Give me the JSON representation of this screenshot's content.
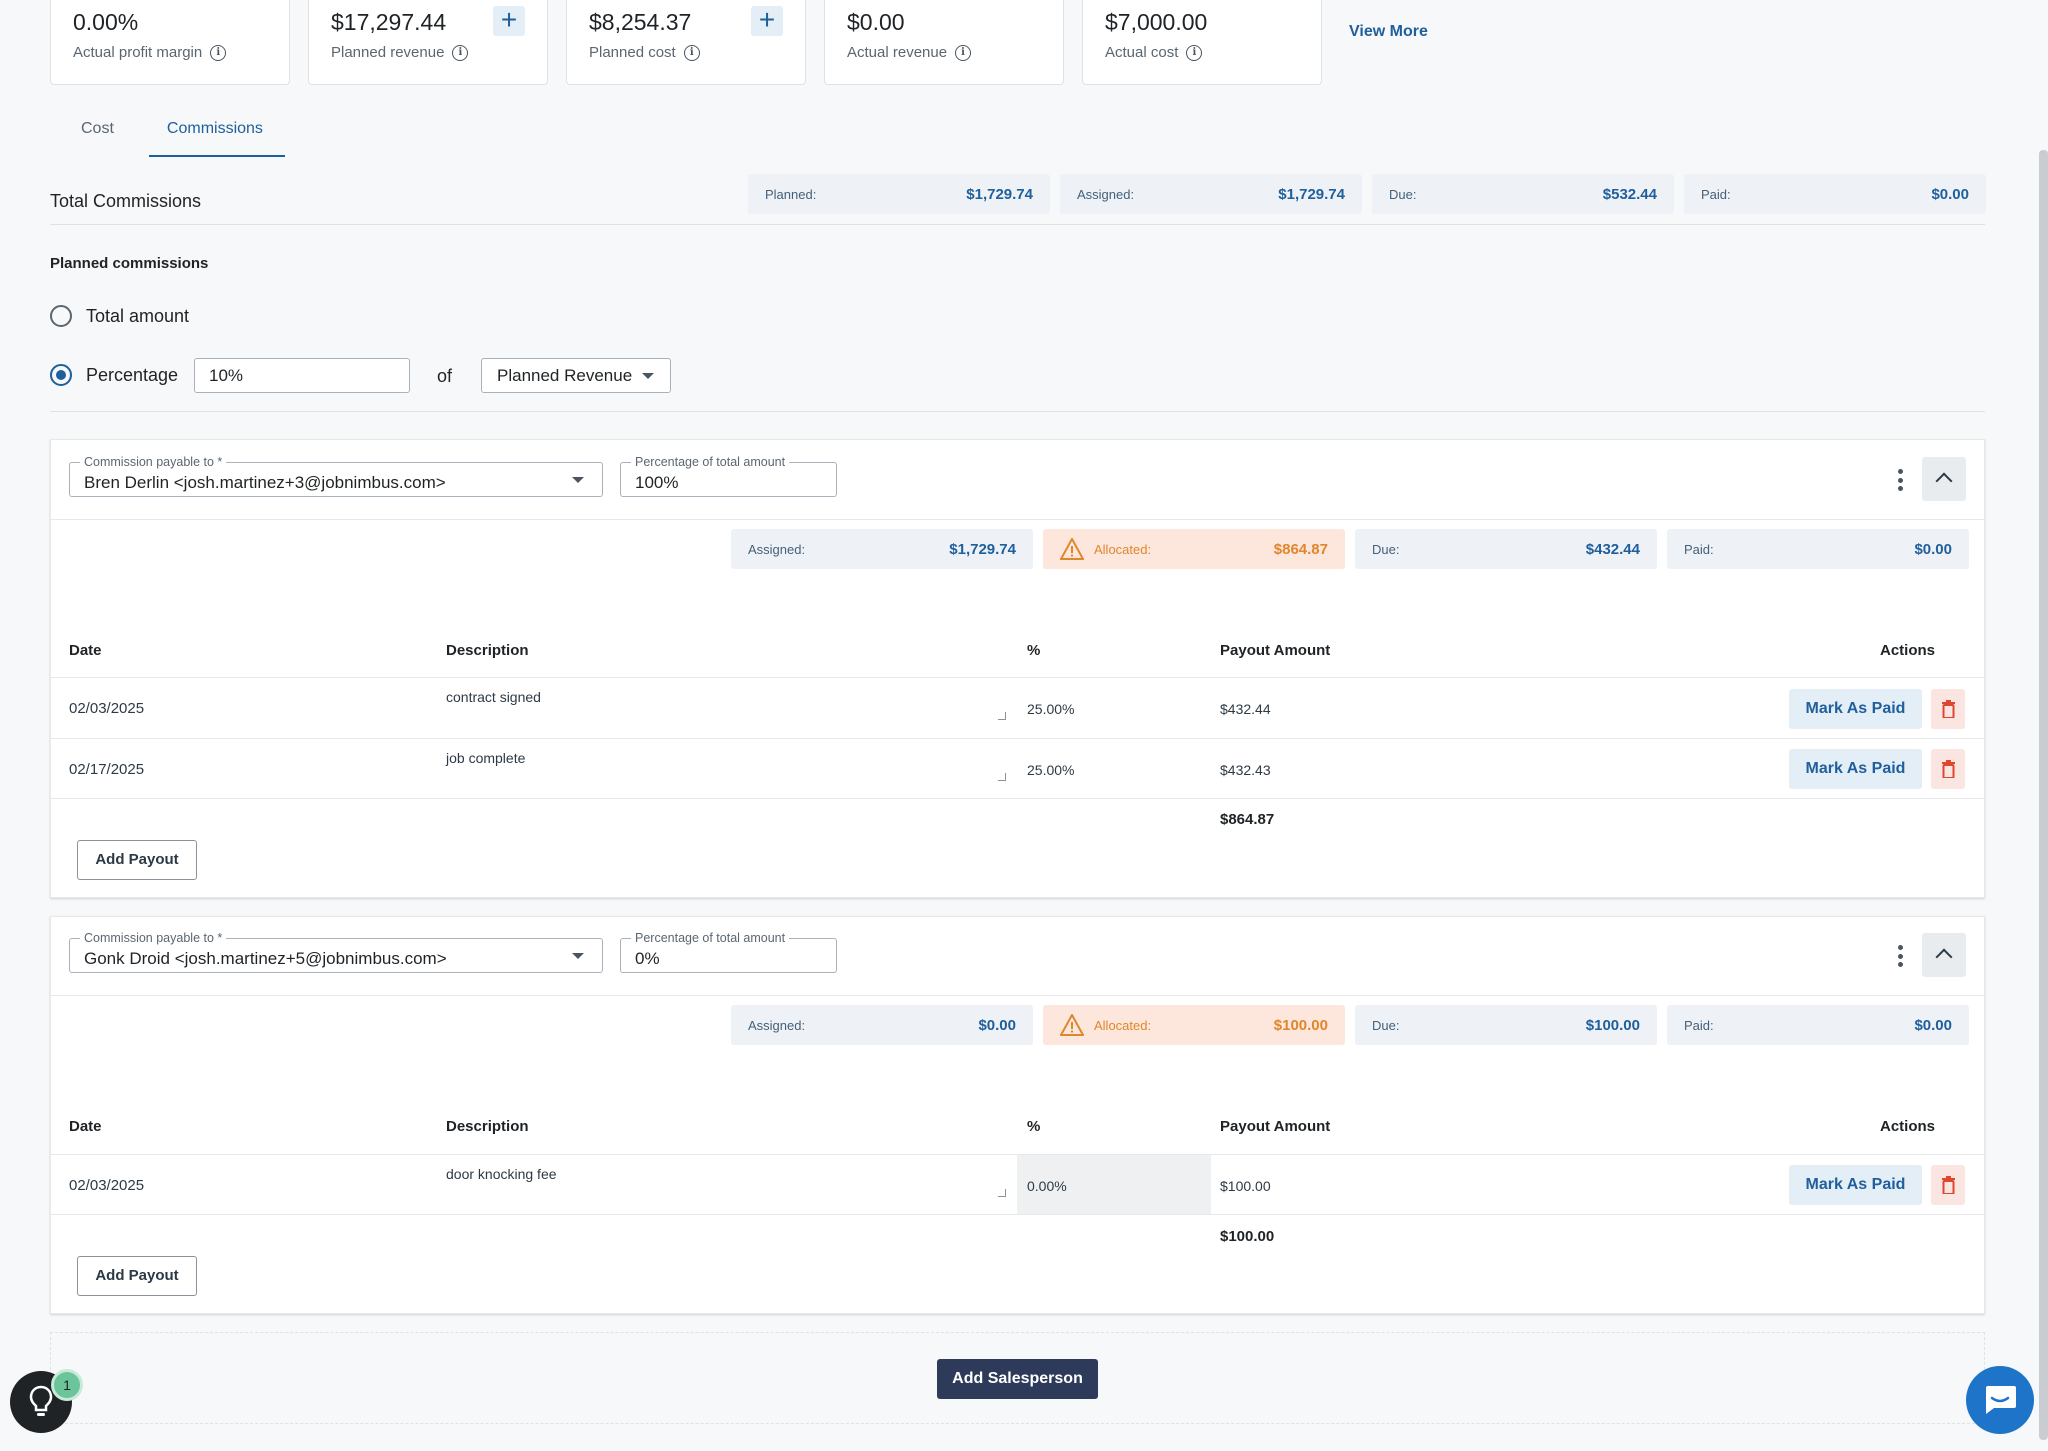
{
  "summary_cards": [
    {
      "value": "0.00%",
      "label": "Actual profit margin",
      "has_add": false
    },
    {
      "value": "$17,297.44",
      "label": "Planned revenue",
      "has_add": true
    },
    {
      "value": "$8,254.37",
      "label": "Planned cost",
      "has_add": true
    },
    {
      "value": "$0.00",
      "label": "Actual revenue",
      "has_add": false
    },
    {
      "value": "$7,000.00",
      "label": "Actual cost",
      "has_add": false
    }
  ],
  "view_more": "View More",
  "tabs": [
    {
      "label": "Cost",
      "active": false
    },
    {
      "label": "Commissions",
      "active": true
    }
  ],
  "total_commissions": {
    "title": "Total Commissions",
    "pills": [
      {
        "key": "Planned:",
        "value": "$1,729.74"
      },
      {
        "key": "Assigned:",
        "value": "$1,729.74"
      },
      {
        "key": "Due:",
        "value": "$532.44"
      },
      {
        "key": "Paid:",
        "value": "$0.00"
      }
    ]
  },
  "planned": {
    "title": "Planned commissions",
    "total_amount_label": "Total amount",
    "percentage_label": "Percentage",
    "percentage_value": "10%",
    "of_label": "of",
    "basis": "Planned Revenue"
  },
  "table_headers": {
    "date": "Date",
    "description": "Description",
    "pct": "%",
    "payout": "Payout Amount",
    "actions": "Actions"
  },
  "buttons": {
    "mark_paid": "Mark As Paid",
    "add_payout": "Add Payout",
    "add_salesperson": "Add Salesperson"
  },
  "commissions": [
    {
      "payable_label": "Commission payable to *",
      "payable_to": "Bren Derlin <josh.martinez+3@jobnimbus.com>",
      "pct_label": "Percentage of total amount",
      "pct_value": "100%",
      "pills": [
        {
          "key": "Assigned:",
          "value": "$1,729.74"
        },
        {
          "key": "Allocated:",
          "value": "$864.87",
          "warn": true
        },
        {
          "key": "Due:",
          "value": "$432.44"
        },
        {
          "key": "Paid:",
          "value": "$0.00"
        }
      ],
      "rows": [
        {
          "date": "02/03/2025",
          "description": "contract signed",
          "pct": "25.00%",
          "payout": "$432.44"
        },
        {
          "date": "02/17/2025",
          "description": "job complete",
          "pct": "25.00%",
          "payout": "$432.43"
        }
      ],
      "total": "$864.87"
    },
    {
      "payable_label": "Commission payable to *",
      "payable_to": "Gonk Droid <josh.martinez+5@jobnimbus.com>",
      "pct_label": "Percentage of total amount",
      "pct_value": "0%",
      "pills": [
        {
          "key": "Assigned:",
          "value": "$0.00"
        },
        {
          "key": "Allocated:",
          "value": "$100.00",
          "warn": true
        },
        {
          "key": "Due:",
          "value": "$100.00"
        },
        {
          "key": "Paid:",
          "value": "$0.00"
        }
      ],
      "rows": [
        {
          "date": "02/03/2025",
          "description": "door knocking fee",
          "pct": "0.00%",
          "payout": "$100.00"
        }
      ],
      "total": "$100.00"
    }
  ],
  "help_badge": "1",
  "colors": {
    "accent": "#1f5f9c",
    "warning": "#e0862d",
    "danger": "#e0452f",
    "primary_dark": "#2e3a59"
  }
}
